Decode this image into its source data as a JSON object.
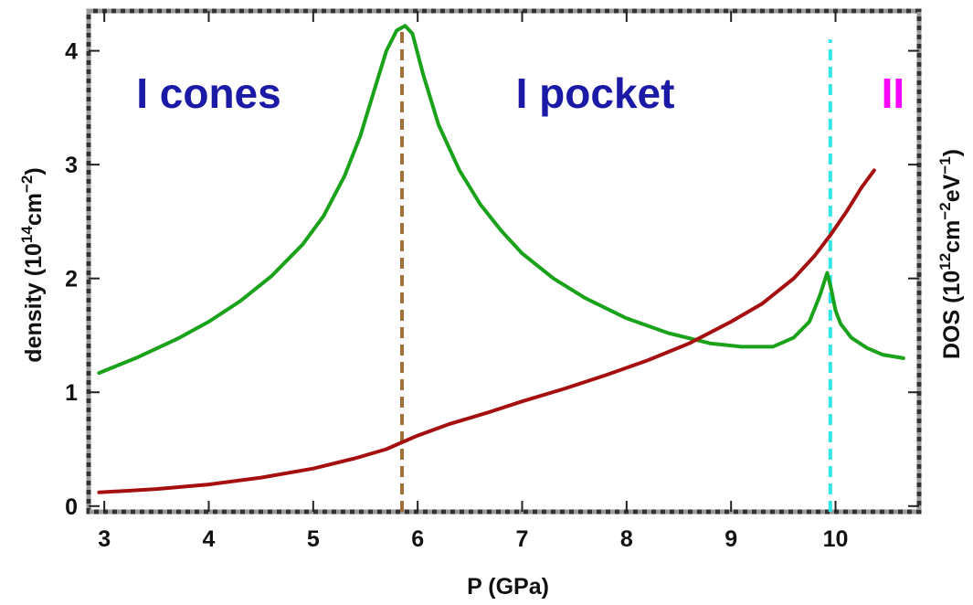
{
  "chart_data": {
    "type": "line",
    "title": "",
    "xlabel": "P (GPa)",
    "ylabel_left": {
      "prefix": "density (10",
      "sup1": "14",
      "mid": "cm",
      "sup2": "−2",
      "suffix": ")"
    },
    "ylabel_right": {
      "prefix": "DOS (10",
      "sup1": "12",
      "mid": "cm",
      "sup2": "−2",
      "mid2": "eV",
      "sup3": "−1",
      "suffix": ")"
    },
    "xlim": [
      2.85,
      10.8
    ],
    "ylim": [
      -0.05,
      4.35
    ],
    "x_ticks": [
      3,
      4,
      5,
      6,
      7,
      8,
      9,
      10
    ],
    "y_ticks": [
      0,
      1,
      2,
      3,
      4
    ],
    "grid": false,
    "frame": "dashed",
    "annotations": [
      {
        "text": "I cones",
        "x": 4.0,
        "y": 3.5,
        "color": "#1a1aa6"
      },
      {
        "text": "I pocket",
        "x": 7.7,
        "y": 3.5,
        "color": "#1a1aa6"
      },
      {
        "text": "II",
        "x": 10.55,
        "y": 3.5,
        "color": "#ff00ff"
      }
    ],
    "vlines": [
      {
        "x": 5.85,
        "y_from": -0.05,
        "y_to": 4.2,
        "color": "#a0703a",
        "style": "dashed"
      },
      {
        "x": 9.95,
        "y_from": -0.05,
        "y_to": 4.1,
        "color": "#33e6e6",
        "style": "dashed"
      }
    ],
    "series": [
      {
        "color": "#1aa21a",
        "x": [
          2.95,
          3.3,
          3.7,
          4.0,
          4.3,
          4.6,
          4.9,
          5.1,
          5.3,
          5.45,
          5.6,
          5.7,
          5.8,
          5.88,
          5.95,
          6.05,
          6.2,
          6.4,
          6.6,
          6.8,
          7.0,
          7.3,
          7.6,
          8.0,
          8.4,
          8.8,
          9.1,
          9.4,
          9.6,
          9.75,
          9.85,
          9.92,
          9.96,
          10.0,
          10.05,
          10.15,
          10.3,
          10.45,
          10.65
        ],
        "y": [
          1.17,
          1.3,
          1.47,
          1.62,
          1.8,
          2.02,
          2.3,
          2.55,
          2.9,
          3.25,
          3.7,
          4.0,
          4.18,
          4.22,
          4.15,
          3.8,
          3.35,
          2.95,
          2.65,
          2.42,
          2.22,
          2.0,
          1.83,
          1.65,
          1.52,
          1.43,
          1.4,
          1.4,
          1.48,
          1.62,
          1.85,
          2.05,
          1.9,
          1.72,
          1.6,
          1.48,
          1.39,
          1.33,
          1.3
        ]
      },
      {
        "color": "#a60f0f",
        "x": [
          2.95,
          3.5,
          4.0,
          4.5,
          5.0,
          5.4,
          5.7,
          5.85,
          6.0,
          6.3,
          6.7,
          7.0,
          7.4,
          7.8,
          8.2,
          8.6,
          9.0,
          9.3,
          9.6,
          9.8,
          9.95,
          10.1,
          10.25,
          10.37
        ],
        "y": [
          0.12,
          0.15,
          0.19,
          0.25,
          0.33,
          0.42,
          0.5,
          0.56,
          0.62,
          0.72,
          0.83,
          0.92,
          1.03,
          1.15,
          1.28,
          1.43,
          1.62,
          1.78,
          2.0,
          2.2,
          2.38,
          2.58,
          2.8,
          2.95
        ]
      }
    ]
  }
}
